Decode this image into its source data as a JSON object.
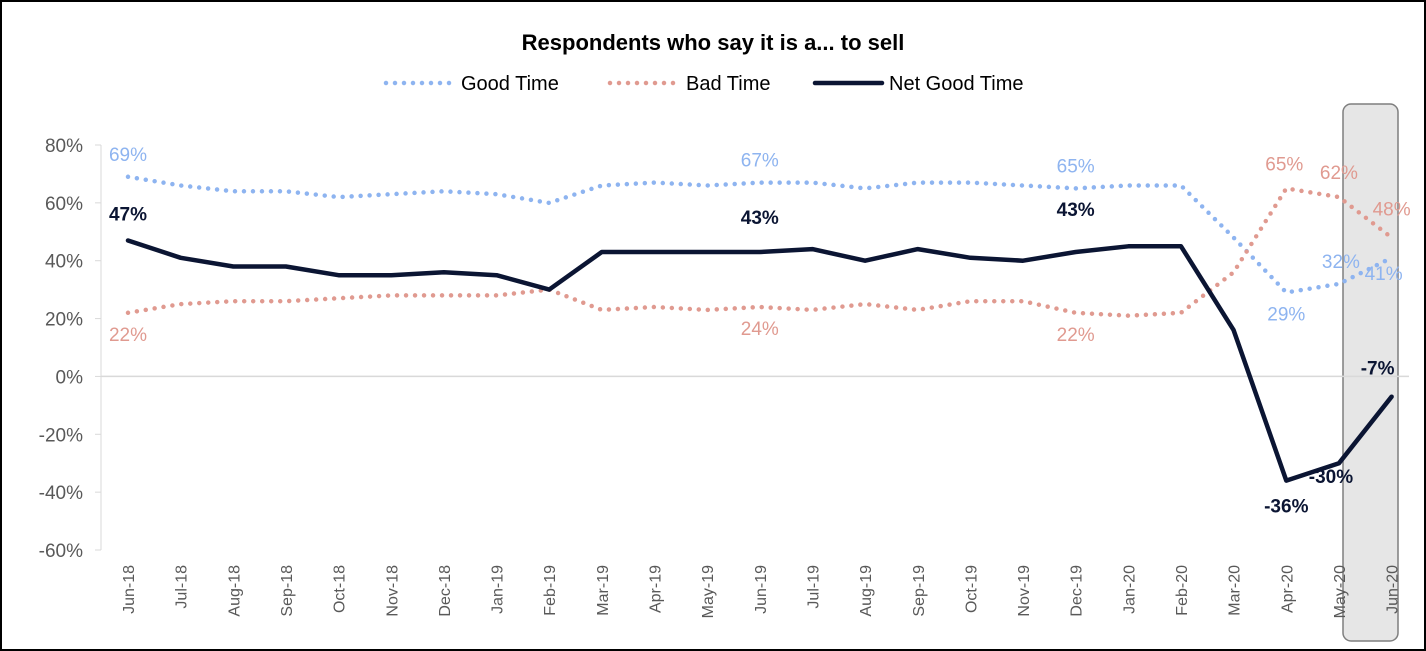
{
  "chart_data": {
    "type": "line",
    "title": "Respondents who say it is a... to sell",
    "categories": [
      "Jun-18",
      "Jul-18",
      "Aug-18",
      "Sep-18",
      "Oct-18",
      "Nov-18",
      "Dec-18",
      "Jan-19",
      "Feb-19",
      "Mar-19",
      "Apr-19",
      "May-19",
      "Jun-19",
      "Jul-19",
      "Aug-19",
      "Sep-19",
      "Oct-19",
      "Nov-19",
      "Dec-19",
      "Jan-20",
      "Feb-20",
      "Mar-20",
      "Apr-20",
      "May-20",
      "Jun-20"
    ],
    "ylim": [
      -60,
      80
    ],
    "yticks": [
      80,
      60,
      40,
      20,
      0,
      -20,
      -40,
      -60
    ],
    "ytick_labels": [
      "80%",
      "60%",
      "40%",
      "20%",
      "0%",
      "-20%",
      "-40%",
      "-60%"
    ],
    "legend_position": "top",
    "highlighted_category": "Jun-20",
    "series": [
      {
        "name": "Good Time",
        "color": "#8eb4f0",
        "style": "dotted",
        "values": [
          69,
          66,
          64,
          64,
          62,
          63,
          64,
          63,
          60,
          66,
          67,
          66,
          67,
          67,
          65,
          67,
          67,
          66,
          65,
          66,
          66,
          48,
          29,
          32,
          41
        ],
        "labels": [
          {
            "index": 0,
            "text": "69%"
          },
          {
            "index": 12,
            "text": "67%"
          },
          {
            "index": 18,
            "text": "65%"
          },
          {
            "index": 22,
            "text": "29%"
          },
          {
            "index": 23,
            "text": "32%"
          },
          {
            "index": 24,
            "text": "41%"
          }
        ]
      },
      {
        "name": "Bad Time",
        "color": "#e09a90",
        "style": "dotted",
        "values": [
          22,
          25,
          26,
          26,
          27,
          28,
          28,
          28,
          30,
          23,
          24,
          23,
          24,
          23,
          25,
          23,
          26,
          26,
          22,
          21,
          22,
          36,
          65,
          62,
          48
        ],
        "labels": [
          {
            "index": 0,
            "text": "22%"
          },
          {
            "index": 12,
            "text": "24%"
          },
          {
            "index": 18,
            "text": "22%"
          },
          {
            "index": 22,
            "text": "65%"
          },
          {
            "index": 23,
            "text": "62%"
          },
          {
            "index": 24,
            "text": "48%"
          }
        ]
      },
      {
        "name": "Net Good Time",
        "color": "#0b1533",
        "style": "solid",
        "values": [
          47,
          41,
          38,
          38,
          35,
          35,
          36,
          35,
          30,
          43,
          43,
          43,
          43,
          44,
          40,
          44,
          41,
          40,
          43,
          45,
          45,
          16,
          -36,
          -30,
          -7
        ],
        "labels": [
          {
            "index": 0,
            "text": "47%"
          },
          {
            "index": 12,
            "text": "43%"
          },
          {
            "index": 18,
            "text": "43%"
          },
          {
            "index": 22,
            "text": "-36%"
          },
          {
            "index": 23,
            "text": "-30%"
          },
          {
            "index": 24,
            "text": "-7%"
          }
        ]
      }
    ]
  }
}
